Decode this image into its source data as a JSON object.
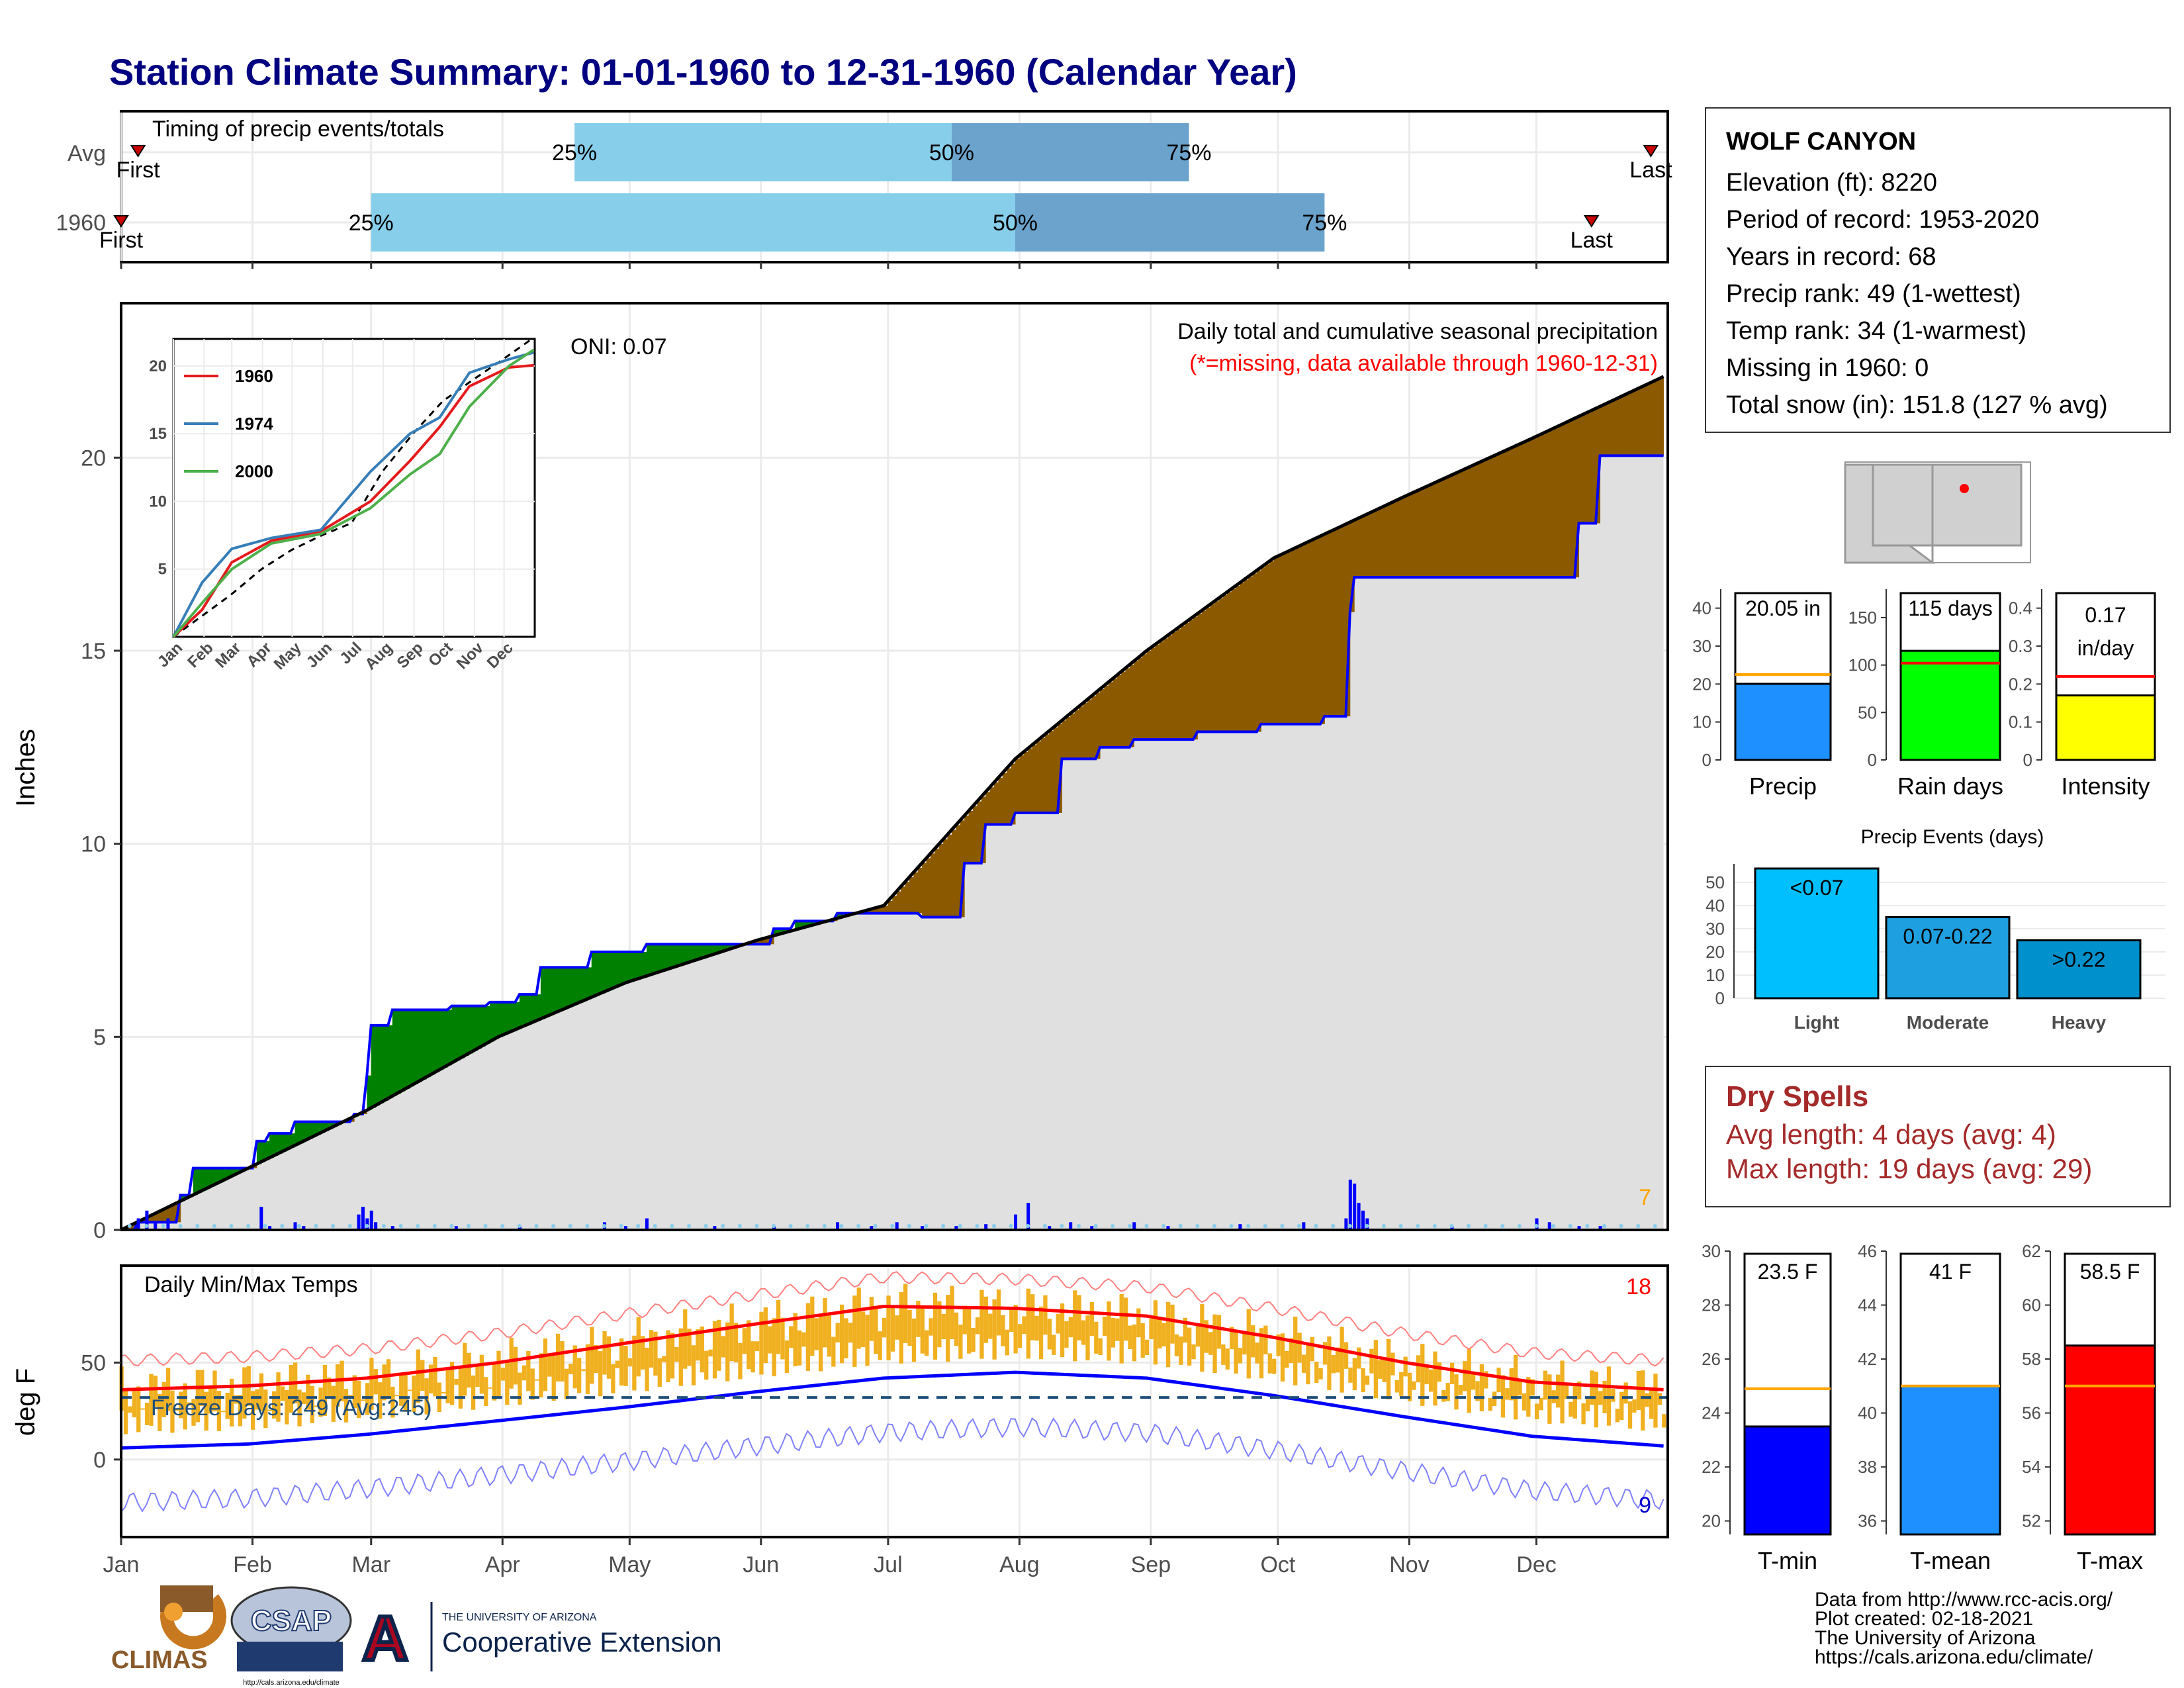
{
  "title": "Station Climate Summary: 01-01-1960 to 12-31-1960 (Calendar Year)",
  "colors": {
    "title": "#000080",
    "light_blue": "#87CEEB",
    "steel": "#6BA3CC",
    "green": "#008000",
    "brown": "#8B5A00",
    "bluefill": "#0000FF",
    "orange": "#F0B020",
    "red": "#FF0000",
    "gray": "#E0E0E0",
    "dry": "#A52A2A"
  },
  "station": {
    "name": "WOLF CANYON",
    "elevation": "Elevation (ft): 8220",
    "period": "Period of record: 1953-2020",
    "years": "Years in record: 68",
    "precip_rank": "Precip rank: 49 (1-wettest)",
    "temp_rank": "Temp rank: 34 (1-warmest)",
    "missing": "Missing in 1960: 0",
    "snow": "Total snow (in): 151.8 (127 % avg)"
  },
  "dry_spells": {
    "title": "Dry Spells",
    "avg": "Avg length: 4 days (avg: 4)",
    "max": "Max length: 19 days (avg: 29)"
  },
  "footer": {
    "l1": "Data from http://www.rcc-acis.org/",
    "l2": "Plot created: 02-18-2021",
    "l3": "The University of Arizona",
    "l4": "https://cals.arizona.edu/climate/"
  },
  "logos": {
    "climas": "CLIMAS",
    "csap": "CSAP",
    "csap_url": "http://cals.arizona.edu/climate",
    "ua_small": "THE UNIVERSITY OF ARIZONA",
    "ua_big": "Cooperative Extension",
    "ua_letter": "A"
  },
  "chart_data": [
    {
      "type": "bar",
      "id": "timing",
      "title": "Timing of precip events/totals",
      "categories": [
        "Avg",
        "1960"
      ],
      "series": [
        {
          "name": "Avg",
          "first": "01-05",
          "p25": "04-18",
          "p50": "07-16",
          "p75": "09-10",
          "last": "12-28"
        },
        {
          "name": "1960",
          "first": "01-01",
          "p25": "03-01",
          "p50": "07-31",
          "p75": "10-12",
          "last": "12-14"
        }
      ],
      "labels": {
        "p25": "25%",
        "p50": "50%",
        "p75": "75%",
        "first": "First",
        "last": "Last"
      }
    },
    {
      "type": "area",
      "id": "precip_main",
      "title": "Daily total and cumulative seasonal precipitation",
      "subtitle": "(*=missing, data available through 1960-12-31)",
      "ylabel": "Inches",
      "ylim": [
        0,
        24
      ],
      "yticks": [
        0,
        5,
        10,
        15,
        20
      ],
      "oni": "ONI: 0.07",
      "count_label": "7",
      "x_months": [
        "Jan",
        "Feb",
        "Mar",
        "Apr",
        "May",
        "Jun",
        "Jul",
        "Aug",
        "Sep",
        "Oct",
        "Nov",
        "Dec"
      ],
      "avg_cumulative": {
        "day": [
          1,
          31,
          59,
          90,
          120,
          151,
          181,
          212,
          243,
          273,
          304,
          334,
          365
        ],
        "value": [
          0,
          1.6,
          3.1,
          5.0,
          6.4,
          7.5,
          8.4,
          12.2,
          15.0,
          17.4,
          19.0,
          20.5,
          22.1
        ]
      },
      "year_cumulative": {
        "day": [
          1,
          5,
          15,
          18,
          30,
          33,
          36,
          42,
          45,
          56,
          59,
          60,
          65,
          79,
          88,
          95,
          100,
          108,
          112,
          125,
          135,
          155,
          160,
          170,
          190,
          200,
          205,
          212,
          223,
          232,
          240,
          255,
          270,
          285,
          291,
          292,
          300,
          320,
          340,
          345,
          350,
          365
        ],
        "value": [
          0,
          0.2,
          0.9,
          1.6,
          1.6,
          2.3,
          2.5,
          2.8,
          2.8,
          3.0,
          4.0,
          5.3,
          5.7,
          5.8,
          5.9,
          6.1,
          6.8,
          6.8,
          7.2,
          7.4,
          7.4,
          7.8,
          8.0,
          8.2,
          8.1,
          9.5,
          10.5,
          10.8,
          12.2,
          12.5,
          12.7,
          12.9,
          13.1,
          13.3,
          16.0,
          16.9,
          16.9,
          16.9,
          16.9,
          18.3,
          20.05,
          20.05
        ]
      },
      "daily_events": [
        [
          5,
          0.3
        ],
        [
          7,
          0.5
        ],
        [
          9,
          0.2
        ],
        [
          12,
          0.3
        ],
        [
          34,
          0.6
        ],
        [
          36,
          0.1
        ],
        [
          42,
          0.2
        ],
        [
          44,
          0.1
        ],
        [
          57,
          0.4
        ],
        [
          58,
          0.6
        ],
        [
          59,
          0.3
        ],
        [
          60,
          0.5
        ],
        [
          61,
          0.2
        ],
        [
          65,
          0.1
        ],
        [
          80,
          0.1
        ],
        [
          95,
          0.1
        ],
        [
          115,
          0.2
        ],
        [
          120,
          0.1
        ],
        [
          125,
          0.3
        ],
        [
          141,
          0.1
        ],
        [
          155,
          0.1
        ],
        [
          170,
          0.2
        ],
        [
          178,
          0.1
        ],
        [
          184,
          0.2
        ],
        [
          190,
          0.1
        ],
        [
          198,
          0.1
        ],
        [
          205,
          0.15
        ],
        [
          212,
          0.4
        ],
        [
          215,
          0.7
        ],
        [
          220,
          0.1
        ],
        [
          225,
          0.2
        ],
        [
          230,
          0.1
        ],
        [
          240,
          0.2
        ],
        [
          248,
          0.1
        ],
        [
          265,
          0.15
        ],
        [
          280,
          0.2
        ],
        [
          290,
          0.3
        ],
        [
          291,
          1.3
        ],
        [
          292,
          1.2
        ],
        [
          293,
          0.7
        ],
        [
          294,
          0.5
        ],
        [
          295,
          0.3
        ],
        [
          315,
          0.1
        ],
        [
          335,
          0.3
        ],
        [
          338,
          0.2
        ],
        [
          345,
          0.1
        ],
        [
          350,
          0.1
        ]
      ]
    },
    {
      "type": "line",
      "id": "inset",
      "series": [
        {
          "name": "1960",
          "color": "#E41A1C"
        },
        {
          "name": "1974",
          "color": "#377EB8"
        },
        {
          "name": "2000",
          "color": "#4DAF4A"
        }
      ],
      "x_months": [
        "Jan",
        "Feb",
        "Mar",
        "Apr",
        "May",
        "Jun",
        "Jul",
        "Aug",
        "Sep",
        "Oct",
        "Nov",
        "Dec"
      ],
      "yticks": [
        5,
        10,
        15,
        20
      ],
      "ylim": [
        0,
        22
      ]
    },
    {
      "type": "bar",
      "id": "temps",
      "title": "Daily Min/Max Temps",
      "ylabel": "deg F",
      "yticks": [
        0,
        50
      ],
      "ylim": [
        -40,
        100
      ],
      "freeze_label": "Freeze Days: 249 (Avg:245)",
      "freeze_line": 32,
      "max_count": "18",
      "min_count": "9",
      "avg_max": {
        "day": [
          1,
          31,
          59,
          90,
          120,
          151,
          181,
          212,
          243,
          273,
          304,
          334,
          365
        ],
        "value": [
          36,
          38,
          42,
          50,
          60,
          70,
          79,
          78,
          74,
          63,
          50,
          40,
          36
        ]
      },
      "avg_min": {
        "day": [
          1,
          31,
          59,
          90,
          120,
          151,
          181,
          212,
          243,
          273,
          304,
          334,
          365
        ],
        "value": [
          6,
          8,
          13,
          20,
          27,
          35,
          42,
          45,
          42,
          33,
          22,
          12,
          7
        ]
      }
    },
    {
      "type": "bar",
      "id": "summary_precip",
      "categories": [
        "Precip",
        "Rain days",
        "Intensity"
      ],
      "values": [
        20.05,
        115,
        0.17
      ],
      "avg": [
        22.5,
        102,
        0.22
      ],
      "ylims": [
        [
          0,
          45
        ],
        [
          0,
          180
        ],
        [
          0,
          0.45
        ]
      ],
      "yticks": [
        [
          0,
          10,
          20,
          30,
          40
        ],
        [
          0,
          50,
          100,
          150
        ],
        [
          0.0,
          0.1,
          0.2,
          0.3,
          0.4
        ]
      ],
      "value_labels": [
        "20.05 in",
        "115 days",
        "0.17"
      ],
      "extra_label": "in/day"
    },
    {
      "type": "bar",
      "id": "events",
      "title": "Precip Events (days)",
      "categories": [
        "Light",
        "Moderate",
        "Heavy"
      ],
      "values": [
        56,
        35,
        25
      ],
      "value_labels": [
        "<0.07",
        "0.07-0.22",
        ">0.22"
      ],
      "ylim": [
        0,
        58
      ],
      "yticks": [
        0,
        10,
        20,
        30,
        40,
        50
      ]
    },
    {
      "type": "bar",
      "id": "temp_summary",
      "categories": [
        "T-min",
        "T-mean",
        "T-max"
      ],
      "values": [
        23.5,
        41,
        58.5
      ],
      "avg": [
        24.9,
        41.0,
        57.0
      ],
      "value_labels": [
        "23.5 F",
        "41 F",
        "58.5 F"
      ],
      "ylims": [
        [
          19.5,
          30
        ],
        [
          35.5,
          46
        ],
        [
          51.5,
          62
        ]
      ],
      "yticks": [
        [
          20,
          22,
          24,
          26,
          28,
          30
        ],
        [
          36,
          38,
          40,
          42,
          44,
          46
        ],
        [
          52,
          54,
          56,
          58,
          60,
          62
        ]
      ]
    }
  ]
}
